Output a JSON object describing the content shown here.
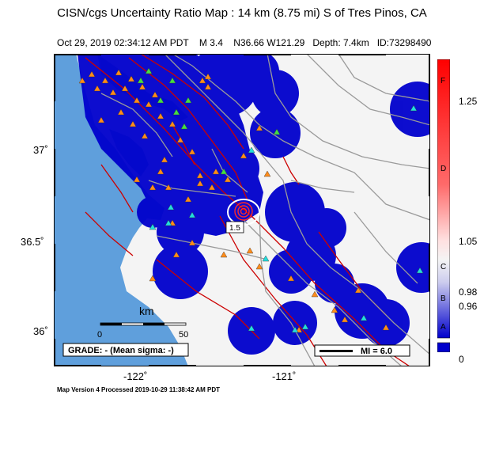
{
  "header": {
    "title": "CISN/cgs Uncertainty Ratio Map : 14 km (8.75 mi) S of Tres Pinos, CA",
    "date": "Oct 29, 2019 02:34:12 AM PDT",
    "magnitude": "M 3.4",
    "location": "N36.66 W121.29",
    "depth": "Depth: 7.4km",
    "id": "ID:73298490"
  },
  "map": {
    "lat_labels": [
      "37˚",
      "36.5˚",
      "36˚"
    ],
    "lon_labels": [
      "-122˚",
      "-121˚"
    ],
    "scale": {
      "unit": "km",
      "start": "0",
      "end": "50"
    },
    "grade_box": "GRADE: - (Mean sigma: -)",
    "mi_box": "MI = 6.0",
    "contour_label": "1.5",
    "colors": {
      "ocean": "#5f9fdc",
      "land": "#f4f4f4",
      "high_uncertainty": "#0000cc",
      "fault": "#cc0000",
      "road": "#9a9a9a"
    }
  },
  "legend": {
    "ticks": [
      "1.25",
      "1.05",
      "0.98",
      "0.96",
      "0"
    ],
    "letters": [
      "F",
      "D",
      "C",
      "B",
      "A"
    ]
  },
  "footer": {
    "text": "Map Version 4 Processed 2019-10-29 11:38:42 AM PDT"
  }
}
